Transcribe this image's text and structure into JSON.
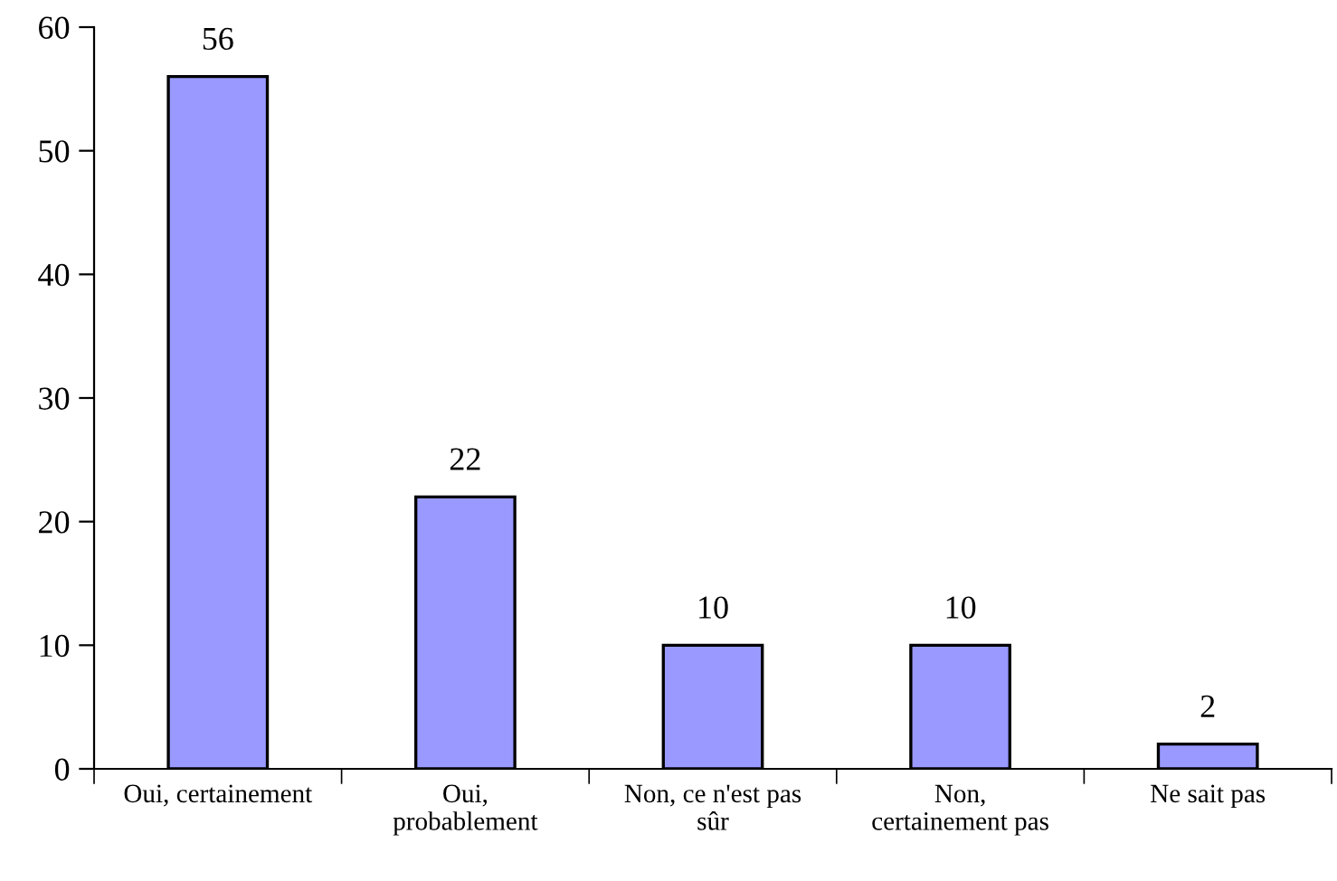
{
  "chart_data": {
    "type": "bar",
    "categories": [
      "Oui, certainement",
      "Oui,\nprobablement",
      "Non, ce n'est pas\nsûr",
      "Non,\ncertainement pas",
      "Ne sait pas"
    ],
    "values": [
      56,
      22,
      10,
      10,
      2
    ],
    "color": "#9999ff",
    "ylim": [
      0,
      60
    ],
    "yticks": [
      0,
      10,
      20,
      30,
      40,
      50,
      60
    ],
    "data_labels": true,
    "grid": false,
    "legend": false
  }
}
